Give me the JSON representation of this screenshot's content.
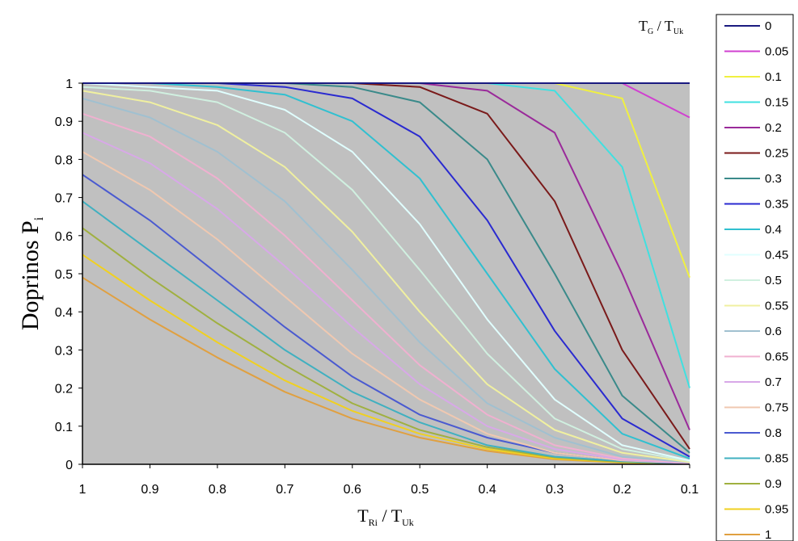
{
  "chart_data": {
    "type": "line",
    "y_label_main": "Doprinos P",
    "y_label_sub": "i",
    "x_label_main_1": "T",
    "x_label_sub_1": "Ri",
    "x_label_main_2": " / T",
    "x_label_sub_2": "Uk",
    "legend_title_main_1": "T",
    "legend_title_sub_1": "G",
    "legend_title_main_2": " / T",
    "legend_title_sub_2": "Uk",
    "x": [
      1,
      0.9,
      0.8,
      0.7,
      0.6,
      0.5,
      0.4,
      0.3,
      0.2,
      0.1
    ],
    "x_tick_labels": [
      "1",
      "0.9",
      "0.8",
      "0.7",
      "0.6",
      "0.5",
      "0.4",
      "0.3",
      "0.2",
      "0.1"
    ],
    "y_ticks": [
      0,
      0.1,
      0.2,
      0.3,
      0.4,
      0.5,
      0.6,
      0.7,
      0.8,
      0.9,
      1
    ],
    "y_tick_labels": [
      "0",
      "0.1",
      "0.2",
      "0.3",
      "0.4",
      "0.5",
      "0.6",
      "0.7",
      "0.8",
      "0.9",
      "1"
    ],
    "ylim": [
      0,
      1
    ],
    "plot_background": "#c0c0c0",
    "legend_position": "right",
    "series": [
      {
        "name": "0",
        "color": "#1a1a80",
        "values": [
          1,
          1,
          1,
          1,
          1,
          1,
          1,
          1,
          1,
          1
        ]
      },
      {
        "name": "0.05",
        "color": "#d040d0",
        "values": [
          1,
          1,
          1,
          1,
          1,
          1,
          1,
          1,
          1,
          0.91
        ]
      },
      {
        "name": "0.1",
        "color": "#f0f040",
        "values": [
          1,
          1,
          1,
          1,
          1,
          1,
          1,
          1,
          0.96,
          0.49
        ]
      },
      {
        "name": "0.15",
        "color": "#40e0e0",
        "values": [
          1,
          1,
          1,
          1,
          1,
          1,
          1,
          0.98,
          0.78,
          0.2
        ]
      },
      {
        "name": "0.2",
        "color": "#9a2a9a",
        "values": [
          1,
          1,
          1,
          1,
          1,
          1,
          0.98,
          0.87,
          0.5,
          0.09
        ]
      },
      {
        "name": "0.25",
        "color": "#7a1a1a",
        "values": [
          1,
          1,
          1,
          1,
          1,
          0.99,
          0.92,
          0.69,
          0.3,
          0.04
        ]
      },
      {
        "name": "0.3",
        "color": "#3a8a8a",
        "values": [
          1,
          1,
          1,
          1,
          0.99,
          0.95,
          0.8,
          0.5,
          0.18,
          0.03
        ]
      },
      {
        "name": "0.35",
        "color": "#2a2ad0",
        "values": [
          1,
          1,
          1,
          0.99,
          0.96,
          0.86,
          0.64,
          0.35,
          0.12,
          0.02
        ]
      },
      {
        "name": "0.4",
        "color": "#30c0d0",
        "values": [
          1,
          1,
          0.99,
          0.97,
          0.9,
          0.75,
          0.5,
          0.25,
          0.08,
          0.015
        ]
      },
      {
        "name": "0.45",
        "color": "#e0ffff",
        "values": [
          1,
          0.99,
          0.98,
          0.93,
          0.82,
          0.63,
          0.38,
          0.17,
          0.05,
          0.01
        ]
      },
      {
        "name": "0.5",
        "color": "#d0f0e0",
        "values": [
          0.99,
          0.98,
          0.95,
          0.87,
          0.72,
          0.51,
          0.29,
          0.12,
          0.04,
          0.008
        ]
      },
      {
        "name": "0.55",
        "color": "#f0f0a0",
        "values": [
          0.98,
          0.95,
          0.89,
          0.78,
          0.61,
          0.4,
          0.21,
          0.09,
          0.03,
          0.006
        ]
      },
      {
        "name": "0.6",
        "color": "#a0c0d0",
        "values": [
          0.96,
          0.91,
          0.82,
          0.69,
          0.51,
          0.32,
          0.16,
          0.07,
          0.02,
          0.005
        ]
      },
      {
        "name": "0.65",
        "color": "#f0b0d0",
        "values": [
          0.92,
          0.86,
          0.75,
          0.6,
          0.43,
          0.26,
          0.13,
          0.05,
          0.015,
          0.004
        ]
      },
      {
        "name": "0.7",
        "color": "#d8a8e8",
        "values": [
          0.87,
          0.79,
          0.67,
          0.52,
          0.36,
          0.21,
          0.1,
          0.04,
          0.012,
          0.003
        ]
      },
      {
        "name": "0.75",
        "color": "#f0c8b0",
        "values": [
          0.82,
          0.72,
          0.59,
          0.44,
          0.29,
          0.17,
          0.08,
          0.03,
          0.01,
          0.003
        ]
      },
      {
        "name": "0.8",
        "color": "#4a5ad0",
        "values": [
          0.76,
          0.64,
          0.5,
          0.36,
          0.23,
          0.13,
          0.07,
          0.03,
          0.01,
          0.002
        ]
      },
      {
        "name": "0.85",
        "color": "#40b0c0",
        "values": [
          0.69,
          0.56,
          0.43,
          0.3,
          0.19,
          0.11,
          0.05,
          0.02,
          0.008,
          0.002
        ]
      },
      {
        "name": "0.9",
        "color": "#a0b040",
        "values": [
          0.62,
          0.49,
          0.37,
          0.26,
          0.16,
          0.09,
          0.045,
          0.018,
          0.006,
          0.001
        ]
      },
      {
        "name": "0.95",
        "color": "#f0d020",
        "values": [
          0.55,
          0.43,
          0.32,
          0.22,
          0.14,
          0.08,
          0.04,
          0.015,
          0.005,
          0.001
        ]
      },
      {
        "name": "1",
        "color": "#e0a040",
        "values": [
          0.49,
          0.38,
          0.28,
          0.19,
          0.12,
          0.07,
          0.035,
          0.013,
          0.004,
          0.001
        ]
      }
    ]
  }
}
